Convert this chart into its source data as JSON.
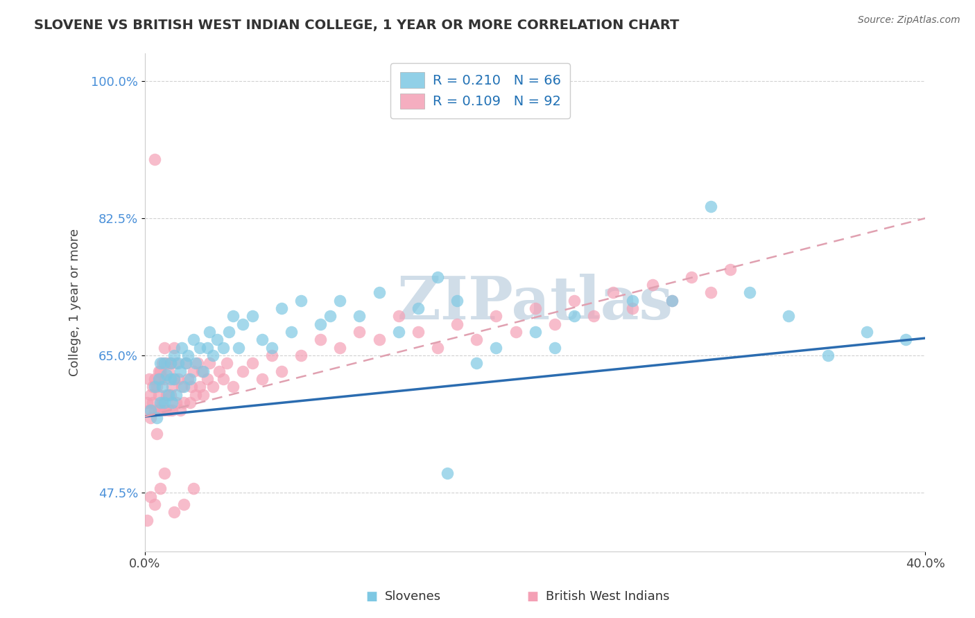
{
  "title": "SLOVENE VS BRITISH WEST INDIAN COLLEGE, 1 YEAR OR MORE CORRELATION CHART",
  "source_text": "Source: ZipAtlas.com",
  "ylabel_label": "College, 1 year or more",
  "xmin": 0.0,
  "xmax": 0.4,
  "ymin": 0.4,
  "ymax": 1.035,
  "ytick_vals": [
    0.475,
    0.65,
    0.825,
    1.0
  ],
  "ytick_labels": [
    "47.5%",
    "65.0%",
    "82.5%",
    "100.0%"
  ],
  "xtick_vals": [
    0.0,
    0.4
  ],
  "xtick_labels": [
    "0.0%",
    "40.0%"
  ],
  "blue_color": "#7ec8e3",
  "pink_color": "#f4a0b5",
  "blue_line_color": "#2b6cb0",
  "pink_line_color": "#e0a0b0",
  "watermark": "ZIPatlas",
  "watermark_color": "#d0dde8",
  "blue_line_y0": 0.572,
  "blue_line_y1": 0.672,
  "pink_line_y0": 0.572,
  "pink_line_y1": 0.825,
  "legend_label1": "R = 0.210   N = 66",
  "legend_label2": "R = 0.109   N = 92",
  "bottom_label1": "Slovenes",
  "bottom_label2": "British West Indians",
  "slovenes_x": [
    0.003,
    0.005,
    0.006,
    0.007,
    0.008,
    0.008,
    0.009,
    0.01,
    0.01,
    0.011,
    0.012,
    0.013,
    0.013,
    0.014,
    0.015,
    0.015,
    0.016,
    0.017,
    0.018,
    0.019,
    0.02,
    0.021,
    0.022,
    0.023,
    0.025,
    0.026,
    0.028,
    0.03,
    0.032,
    0.033,
    0.035,
    0.037,
    0.04,
    0.043,
    0.045,
    0.048,
    0.05,
    0.055,
    0.06,
    0.065,
    0.07,
    0.075,
    0.08,
    0.09,
    0.095,
    0.1,
    0.11,
    0.12,
    0.13,
    0.14,
    0.15,
    0.155,
    0.16,
    0.17,
    0.18,
    0.2,
    0.21,
    0.22,
    0.25,
    0.27,
    0.29,
    0.31,
    0.33,
    0.35,
    0.37,
    0.39
  ],
  "slovenes_y": [
    0.58,
    0.61,
    0.57,
    0.62,
    0.59,
    0.64,
    0.61,
    0.59,
    0.64,
    0.625,
    0.6,
    0.64,
    0.62,
    0.59,
    0.65,
    0.62,
    0.6,
    0.64,
    0.63,
    0.66,
    0.61,
    0.64,
    0.65,
    0.62,
    0.67,
    0.64,
    0.66,
    0.63,
    0.66,
    0.68,
    0.65,
    0.67,
    0.66,
    0.68,
    0.7,
    0.66,
    0.69,
    0.7,
    0.67,
    0.66,
    0.71,
    0.68,
    0.72,
    0.69,
    0.7,
    0.72,
    0.7,
    0.73,
    0.68,
    0.71,
    0.75,
    0.5,
    0.72,
    0.64,
    0.66,
    0.68,
    0.66,
    0.7,
    0.72,
    0.72,
    0.84,
    0.73,
    0.7,
    0.65,
    0.68,
    0.67
  ],
  "bwi_x": [
    0.001,
    0.002,
    0.002,
    0.003,
    0.003,
    0.004,
    0.004,
    0.005,
    0.005,
    0.005,
    0.006,
    0.006,
    0.007,
    0.007,
    0.007,
    0.008,
    0.008,
    0.008,
    0.009,
    0.009,
    0.01,
    0.01,
    0.01,
    0.011,
    0.011,
    0.012,
    0.012,
    0.013,
    0.013,
    0.014,
    0.014,
    0.015,
    0.015,
    0.016,
    0.016,
    0.017,
    0.018,
    0.019,
    0.02,
    0.021,
    0.022,
    0.023,
    0.024,
    0.025,
    0.026,
    0.027,
    0.028,
    0.029,
    0.03,
    0.032,
    0.033,
    0.035,
    0.038,
    0.04,
    0.042,
    0.045,
    0.05,
    0.055,
    0.06,
    0.065,
    0.07,
    0.08,
    0.09,
    0.1,
    0.11,
    0.12,
    0.13,
    0.14,
    0.15,
    0.16,
    0.17,
    0.18,
    0.19,
    0.2,
    0.21,
    0.22,
    0.23,
    0.24,
    0.25,
    0.26,
    0.27,
    0.28,
    0.29,
    0.3,
    0.001,
    0.003,
    0.005,
    0.008,
    0.01,
    0.015,
    0.02,
    0.025
  ],
  "bwi_y": [
    0.59,
    0.58,
    0.62,
    0.6,
    0.57,
    0.61,
    0.59,
    0.62,
    0.58,
    0.9,
    0.55,
    0.61,
    0.58,
    0.63,
    0.6,
    0.58,
    0.63,
    0.62,
    0.59,
    0.64,
    0.58,
    0.62,
    0.66,
    0.6,
    0.64,
    0.58,
    0.63,
    0.6,
    0.64,
    0.61,
    0.58,
    0.62,
    0.66,
    0.59,
    0.64,
    0.62,
    0.58,
    0.61,
    0.59,
    0.64,
    0.62,
    0.59,
    0.61,
    0.63,
    0.6,
    0.64,
    0.61,
    0.63,
    0.6,
    0.62,
    0.64,
    0.61,
    0.63,
    0.62,
    0.64,
    0.61,
    0.63,
    0.64,
    0.62,
    0.65,
    0.63,
    0.65,
    0.67,
    0.66,
    0.68,
    0.67,
    0.7,
    0.68,
    0.66,
    0.69,
    0.67,
    0.7,
    0.68,
    0.71,
    0.69,
    0.72,
    0.7,
    0.73,
    0.71,
    0.74,
    0.72,
    0.75,
    0.73,
    0.76,
    0.44,
    0.47,
    0.46,
    0.48,
    0.5,
    0.45,
    0.46,
    0.48
  ]
}
